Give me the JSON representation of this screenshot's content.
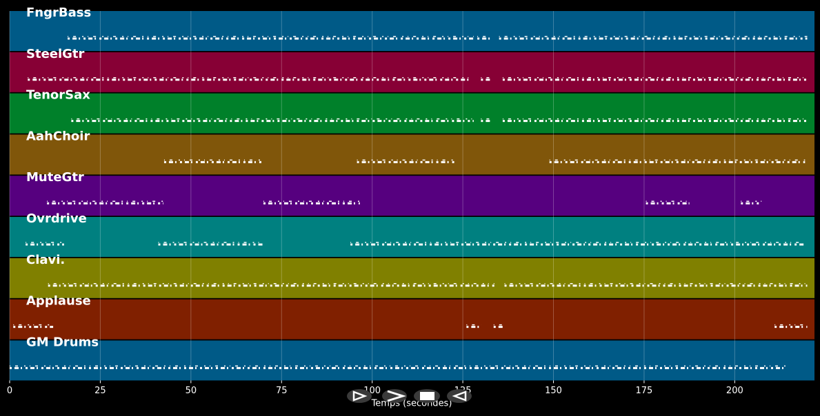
{
  "chart_data": {
    "type": "pianoroll",
    "xlabel": "Temps (secondes)",
    "xlim": [
      0,
      222
    ],
    "xticks": [
      0,
      25,
      50,
      75,
      100,
      125,
      150,
      175,
      200
    ],
    "grid": true,
    "tracks": [
      {
        "name": "FngrBass",
        "color": "#005a87",
        "segments": [
          [
            16,
            128
          ],
          [
            129,
            133
          ],
          [
            135,
            220
          ]
        ]
      },
      {
        "name": "SteelGtr",
        "color": "#870035",
        "segments": [
          [
            5,
            127
          ],
          [
            130,
            133
          ],
          [
            136,
            220
          ]
        ]
      },
      {
        "name": "TenorSax",
        "color": "#00802a",
        "segments": [
          [
            17,
            128
          ],
          [
            130,
            133
          ],
          [
            136,
            220
          ]
        ]
      },
      {
        "name": "AahChoir",
        "color": "#80560a",
        "segments": [
          [
            42.6,
            69.6
          ],
          [
            95.8,
            122.8
          ],
          [
            148.9,
            219.4
          ]
        ]
      },
      {
        "name": "MuteGtr",
        "color": "#56007f",
        "segments": [
          [
            10.3,
            42.4
          ],
          [
            70,
            96.6
          ],
          [
            175.5,
            187.5
          ],
          [
            201.7,
            207.4
          ]
        ]
      },
      {
        "name": "Ovrdrive",
        "color": "#008080",
        "segments": [
          [
            4.4,
            15
          ],
          [
            41,
            70
          ],
          [
            94,
            219
          ]
        ]
      },
      {
        "name": "Clavi.",
        "color": "#808000",
        "segments": [
          [
            10.6,
            133.7
          ],
          [
            136.5,
            220
          ]
        ]
      },
      {
        "name": "Applause",
        "color": "#802000",
        "segments": [
          [
            1,
            12
          ],
          [
            126,
            130
          ],
          [
            133.5,
            136.3
          ],
          [
            211,
            220
          ]
        ]
      },
      {
        "name": "GM Drums",
        "color": "#005a87",
        "segments": [
          [
            0,
            214
          ]
        ]
      }
    ]
  }
}
